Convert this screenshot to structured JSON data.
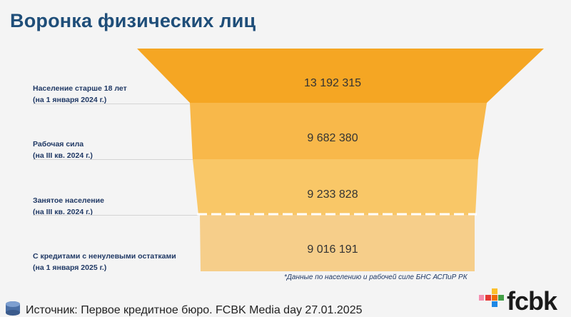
{
  "page": {
    "title": "Воронка физических лиц",
    "footnote": "*Данные по населению и рабочей силе БНС АСПиР РК",
    "source": "Источник: Первое кредитное бюро. FCBK Media day 27.01.2025",
    "logo": "fcbk"
  },
  "colors": {
    "title": "#1f4e79",
    "stage1": "#f5a623",
    "stage2": "#f8b84a",
    "stage3": "#f9c767",
    "stage4": "#f6ce8a"
  },
  "chart_data": {
    "type": "funnel",
    "title": "Воронка физических лиц",
    "stages": [
      {
        "label": "Население старше 18 лет",
        "sublabel": "(на 1 января 2024 г.)",
        "value": 13192315,
        "value_text": "13 192 315"
      },
      {
        "label": "Рабочая сила",
        "sublabel": "(на III кв. 2024 г.)",
        "value": 9682380,
        "value_text": "9 682 380"
      },
      {
        "label": "Занятое население",
        "sublabel": "(на III кв. 2024 г.)",
        "value": 9233828,
        "value_text": "9 233 828"
      },
      {
        "label": "С кредитами с ненулевыми остатками",
        "sublabel": "(на 1 января 2025 г.)",
        "value": 9016191,
        "value_text": "9 016 191"
      }
    ]
  }
}
